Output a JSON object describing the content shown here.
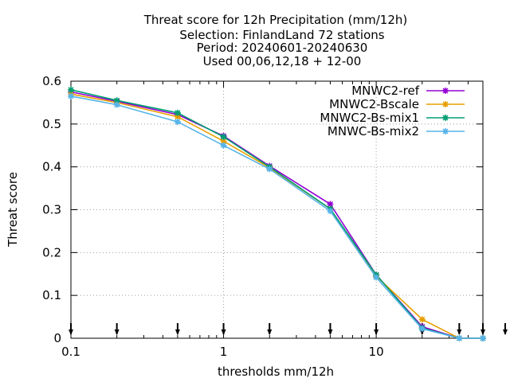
{
  "chart_data": {
    "type": "line",
    "title_lines": [
      "Threat score  for 12h Precipitation (mm/12h)",
      "Selection: FinlandLand     72 stations",
      "Period: 20240601-20240630",
      "Used 00,06,12,18 + 12-00"
    ],
    "xlabel": "thresholds mm/12h",
    "ylabel": "Threat score",
    "x_scale": "log",
    "xlim": [
      0.1,
      50
    ],
    "ylim": [
      0,
      0.6
    ],
    "x_ticks": [
      0.1,
      1,
      10
    ],
    "x_tick_labels": [
      "0.1",
      "1",
      "10"
    ],
    "y_ticks": [
      0,
      0.1,
      0.2,
      0.3,
      0.4,
      0.5,
      0.6
    ],
    "y_tick_labels": [
      "0",
      "0.1",
      "0.2",
      "0.3",
      "0.4",
      "0.5",
      "0.6"
    ],
    "grid": true,
    "legend_position": "top-right",
    "threshold_markers": [
      0.1,
      0.2,
      0.5,
      1,
      2,
      5,
      10,
      20,
      35,
      50,
      70
    ],
    "x": [
      0.1,
      0.2,
      0.5,
      1,
      2,
      5,
      10,
      20,
      35,
      50
    ],
    "series": [
      {
        "name": "MNWC2-ref",
        "color": "#9400d3",
        "values": [
          0.575,
          0.553,
          0.522,
          0.472,
          0.402,
          0.313,
          0.148,
          0.027,
          0.0,
          0.0
        ]
      },
      {
        "name": "MNWC2-Bscale",
        "color": "#e69f00",
        "values": [
          0.57,
          0.55,
          0.517,
          0.46,
          0.398,
          0.302,
          0.145,
          0.044,
          0.0,
          0.0
        ]
      },
      {
        "name": "MNWC2-Bs-mix1",
        "color": "#009e73",
        "values": [
          0.58,
          0.555,
          0.526,
          0.47,
          0.4,
          0.302,
          0.148,
          0.024,
          0.0,
          0.0
        ]
      },
      {
        "name": "MNWC-Bs-mix2",
        "color": "#56b4e9",
        "values": [
          0.565,
          0.545,
          0.505,
          0.45,
          0.395,
          0.297,
          0.142,
          0.022,
          0.0,
          0.0
        ]
      }
    ]
  }
}
